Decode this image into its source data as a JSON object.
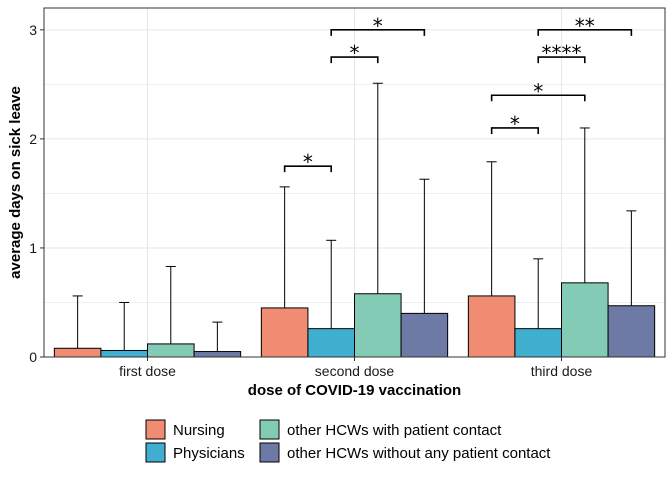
{
  "chart_data": {
    "type": "bar",
    "xlabel": "dose of COVID-19 vaccination",
    "ylabel": "average days on sick leave",
    "ylim": [
      0,
      3.2
    ],
    "yticks": [
      0,
      1,
      2,
      3
    ],
    "grid": true,
    "legend_position": "bottom",
    "categories": [
      "first dose",
      "second dose",
      "third dose"
    ],
    "series": [
      {
        "name": "Nursing",
        "color": "#F08C72",
        "values": [
          0.08,
          0.45,
          0.56
        ],
        "error_upper": [
          0.56,
          1.56,
          1.79
        ]
      },
      {
        "name": "Physicians",
        "color": "#3FAECF",
        "values": [
          0.06,
          0.26,
          0.26
        ],
        "error_upper": [
          0.5,
          1.07,
          0.9
        ]
      },
      {
        "name": "other HCWs with patient contact",
        "color": "#83CBB4",
        "values": [
          0.12,
          0.58,
          0.68
        ],
        "error_upper": [
          0.83,
          2.51,
          2.1
        ]
      },
      {
        "name": "other HCWs without any patient contact",
        "color": "#6E7AA6",
        "values": [
          0.05,
          0.4,
          0.47
        ],
        "error_upper": [
          0.32,
          1.63,
          1.34
        ]
      }
    ],
    "significance": [
      {
        "category": 1,
        "from": 0,
        "to": 1,
        "y": 1.75,
        "label": "*"
      },
      {
        "category": 1,
        "from": 1,
        "to": 2,
        "y": 2.75,
        "label": "*"
      },
      {
        "category": 1,
        "from": 1,
        "to": 3,
        "y": 3.0,
        "label": "*"
      },
      {
        "category": 2,
        "from": 0,
        "to": 1,
        "y": 2.1,
        "label": "*"
      },
      {
        "category": 2,
        "from": 0,
        "to": 2,
        "y": 2.4,
        "label": "*"
      },
      {
        "category": 2,
        "from": 1,
        "to": 2,
        "y": 2.75,
        "label": "****"
      },
      {
        "category": 2,
        "from": 1,
        "to": 3,
        "y": 3.0,
        "label": "**"
      }
    ]
  }
}
